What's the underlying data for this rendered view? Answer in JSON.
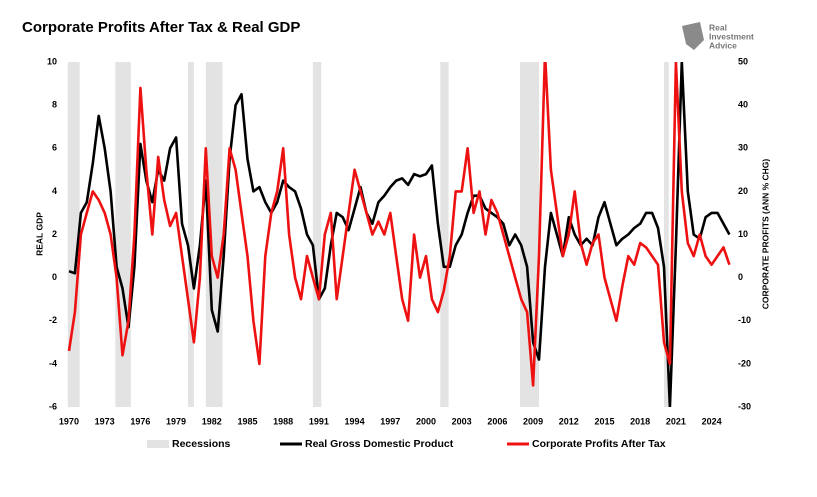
{
  "chart_data": {
    "type": "line",
    "title": "Corporate Profits After Tax & Real GDP",
    "logo": [
      "Real",
      "Investment",
      "Advice"
    ],
    "ylabel": "REAL GDP",
    "y2label": "CORPORATE PROFITS (ANN % CHG)",
    "xlim": [
      1969.5,
      2025.8
    ],
    "xticks": [
      1970,
      1973,
      1976,
      1979,
      1982,
      1985,
      1988,
      1991,
      1994,
      1997,
      2000,
      2003,
      2006,
      2009,
      2012,
      2015,
      2018,
      2021,
      2024
    ],
    "ylim": [
      -6,
      10
    ],
    "yticks": [
      -6,
      -4,
      -2,
      0,
      2,
      4,
      6,
      8,
      10
    ],
    "y2lim": [
      -30,
      50
    ],
    "y2ticks": [
      -30,
      -20,
      -10,
      0,
      10,
      20,
      30,
      40,
      50
    ],
    "recessions": {
      "name": "Recessions",
      "color": "#e3e3e3",
      "spans": [
        [
          1969.9,
          1970.9
        ],
        [
          1973.9,
          1975.2
        ],
        [
          1980.0,
          1980.5
        ],
        [
          1981.5,
          1982.9
        ],
        [
          1990.5,
          1991.2
        ],
        [
          2001.2,
          2001.9
        ],
        [
          2007.9,
          2009.5
        ],
        [
          2020.0,
          2020.4
        ]
      ]
    },
    "x": [
      1970.0,
      1970.5,
      1971.0,
      1971.5,
      1972.0,
      1972.5,
      1973.0,
      1973.5,
      1974.0,
      1974.5,
      1975.0,
      1975.5,
      1976.0,
      1976.5,
      1977.0,
      1977.5,
      1978.0,
      1978.5,
      1979.0,
      1979.5,
      1980.0,
      1980.5,
      1981.0,
      1981.5,
      1982.0,
      1982.5,
      1983.0,
      1983.5,
      1984.0,
      1984.5,
      1985.0,
      1985.5,
      1986.0,
      1986.5,
      1987.0,
      1987.5,
      1988.0,
      1988.5,
      1989.0,
      1989.5,
      1990.0,
      1990.5,
      1991.0,
      1991.5,
      1992.0,
      1992.5,
      1993.0,
      1993.5,
      1994.0,
      1994.5,
      1995.0,
      1995.5,
      1996.0,
      1996.5,
      1997.0,
      1997.5,
      1998.0,
      1998.5,
      1999.0,
      1999.5,
      2000.0,
      2000.5,
      2001.0,
      2001.5,
      2002.0,
      2002.5,
      2003.0,
      2003.5,
      2004.0,
      2004.5,
      2005.0,
      2005.5,
      2006.0,
      2006.5,
      2007.0,
      2007.5,
      2008.0,
      2008.5,
      2009.0,
      2009.5,
      2010.0,
      2010.5,
      2011.0,
      2011.5,
      2012.0,
      2012.5,
      2013.0,
      2013.5,
      2014.0,
      2014.5,
      2015.0,
      2015.5,
      2016.0,
      2016.5,
      2017.0,
      2017.5,
      2018.0,
      2018.5,
      2019.0,
      2019.5,
      2020.0,
      2020.5,
      2021.0,
      2021.5,
      2022.0,
      2022.5,
      2023.0,
      2023.5,
      2024.0,
      2024.5,
      2025.0,
      2025.5
    ],
    "series": [
      {
        "name": "Real Gross Domestic Product",
        "color": "#000000",
        "axis": "y",
        "values": [
          0.3,
          0.2,
          3.0,
          3.5,
          5.3,
          7.5,
          6.0,
          4.0,
          0.5,
          -0.5,
          -2.3,
          0.5,
          6.2,
          4.5,
          3.5,
          5.0,
          4.5,
          6.0,
          6.5,
          2.5,
          1.5,
          -0.5,
          1.5,
          4.5,
          -1.5,
          -2.5,
          1.0,
          5.5,
          8.0,
          8.5,
          5.5,
          4.0,
          4.2,
          3.5,
          3.0,
          3.5,
          4.5,
          4.2,
          4.0,
          3.2,
          2.0,
          1.5,
          -1.0,
          -0.5,
          1.5,
          3.0,
          2.8,
          2.2,
          3.2,
          4.2,
          3.0,
          2.5,
          3.5,
          3.8,
          4.2,
          4.5,
          4.6,
          4.3,
          4.8,
          4.7,
          4.8,
          5.2,
          2.5,
          0.5,
          0.5,
          1.5,
          2.0,
          3.0,
          3.8,
          3.8,
          3.2,
          3.0,
          2.8,
          2.5,
          1.5,
          2.0,
          1.5,
          0.5,
          -3.0,
          -3.8,
          0.5,
          3.0,
          2.0,
          1.0,
          2.8,
          2.0,
          1.5,
          1.8,
          1.5,
          2.8,
          3.5,
          2.5,
          1.5,
          1.8,
          2.0,
          2.3,
          2.5,
          3.0,
          3.0,
          2.3,
          0.5,
          -6.0,
          1.5,
          10.0,
          4.0,
          2.0,
          1.8,
          2.8,
          3.0,
          3.0,
          2.5,
          2.0
        ]
      },
      {
        "name": "Corporate Profits After Tax",
        "color": "#ee1111",
        "axis": "y2",
        "values": [
          -17,
          -8,
          10,
          15,
          20,
          18,
          15,
          10,
          0,
          -18,
          -10,
          10,
          44,
          25,
          10,
          28,
          18,
          12,
          15,
          5,
          -5,
          -15,
          0,
          30,
          5,
          0,
          10,
          30,
          25,
          15,
          5,
          -10,
          -20,
          5,
          15,
          20,
          30,
          10,
          0,
          -5,
          5,
          0,
          -5,
          10,
          15,
          -5,
          5,
          15,
          25,
          20,
          15,
          10,
          13,
          10,
          15,
          5,
          -5,
          -10,
          10,
          0,
          5,
          -5,
          -8,
          -3,
          5,
          20,
          20,
          30,
          15,
          20,
          10,
          18,
          15,
          10,
          5,
          0,
          -5,
          -8,
          -25,
          5,
          52,
          25,
          15,
          5,
          10,
          20,
          8,
          3,
          8,
          10,
          0,
          -5,
          -10,
          -2,
          5,
          3,
          8,
          7,
          5,
          3,
          -15,
          -20,
          50,
          20,
          8,
          5,
          10,
          5,
          3,
          5,
          7,
          3
        ]
      }
    ]
  }
}
